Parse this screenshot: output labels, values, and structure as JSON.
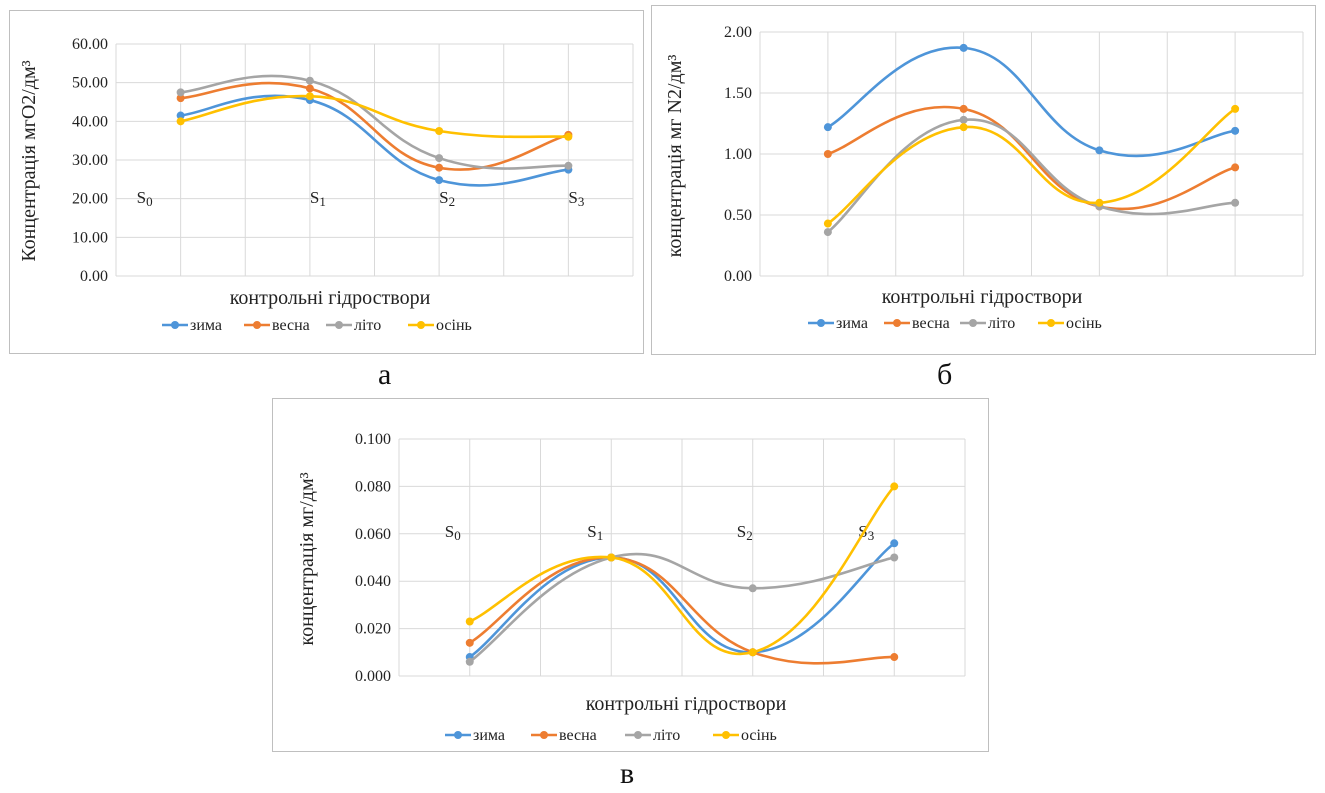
{
  "panels": [
    {
      "id": "a",
      "caption": "а"
    },
    {
      "id": "b",
      "caption": "б"
    },
    {
      "id": "c",
      "caption": "в"
    }
  ],
  "colors": {
    "зима": "#4e95d9",
    "весна": "#ed7d31",
    "літо": "#a5a5a5",
    "осінь": "#ffc000"
  },
  "chart_data": [
    {
      "type": "line",
      "ylabel": "Концентрація мгО2/дм³",
      "xlabel": "контрольні гідроствори",
      "ylim": [
        0,
        60
      ],
      "yticks": [
        "0.00",
        "10.00",
        "20.00",
        "30.00",
        "40.00",
        "50.00",
        "60.00"
      ],
      "station_labels": [
        "S0",
        "S1",
        "S2",
        "S3"
      ],
      "legend": [
        "зима",
        "весна",
        "літо",
        "осінь"
      ],
      "legend_position": "bottom",
      "smooth": true,
      "series": [
        {
          "name": "зима",
          "values": [
            41.5,
            45.5,
            24.8,
            27.5
          ]
        },
        {
          "name": "весна",
          "values": [
            46.0,
            48.5,
            28.0,
            36.5
          ]
        },
        {
          "name": "літо",
          "values": [
            47.5,
            50.5,
            30.5,
            28.5
          ]
        },
        {
          "name": "осінь",
          "values": [
            40.0,
            46.5,
            37.5,
            36.0
          ]
        }
      ]
    },
    {
      "type": "line",
      "ylabel": "концентрація мг N2/дм³",
      "xlabel": "контрольні гідроствори",
      "ylim": [
        0,
        2
      ],
      "yticks": [
        "0.00",
        "0.50",
        "1.00",
        "1.50",
        "2.00"
      ],
      "legend": [
        "зима",
        "весна",
        "літо",
        "осінь"
      ],
      "legend_position": "bottom",
      "smooth": true,
      "series": [
        {
          "name": "зима",
          "values": [
            1.22,
            1.87,
            1.03,
            1.19
          ]
        },
        {
          "name": "весна",
          "values": [
            1.0,
            1.37,
            0.57,
            0.89
          ]
        },
        {
          "name": "літо",
          "values": [
            0.36,
            1.28,
            0.57,
            0.6
          ]
        },
        {
          "name": "осінь",
          "values": [
            0.43,
            1.22,
            0.6,
            1.37
          ]
        }
      ]
    },
    {
      "type": "line",
      "ylabel": "концентрація мг/дм³",
      "xlabel": "контрольні гідроствори",
      "ylim": [
        0,
        0.1
      ],
      "yticks": [
        "0.000",
        "0.020",
        "0.040",
        "0.060",
        "0.080",
        "0.100"
      ],
      "station_labels": [
        "S0",
        "S1",
        "S2",
        "S3"
      ],
      "legend": [
        "зима",
        "весна",
        "літо",
        "осінь"
      ],
      "legend_position": "bottom",
      "smooth": true,
      "series": [
        {
          "name": "зима",
          "values": [
            0.008,
            0.05,
            0.01,
            0.056
          ]
        },
        {
          "name": "весна",
          "values": [
            0.014,
            0.05,
            0.01,
            0.008
          ]
        },
        {
          "name": "літо",
          "values": [
            0.006,
            0.05,
            0.037,
            0.05
          ]
        },
        {
          "name": "осінь",
          "values": [
            0.023,
            0.05,
            0.01,
            0.08
          ]
        }
      ]
    }
  ]
}
